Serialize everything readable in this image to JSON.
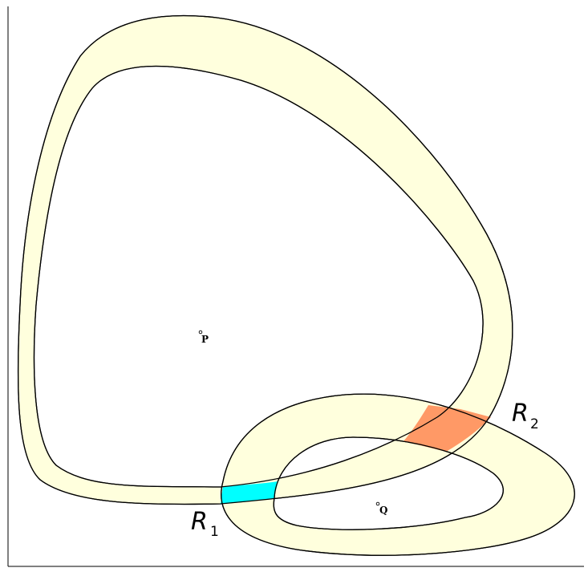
{
  "diagram": {
    "points": [
      {
        "id": "P",
        "label": "P"
      },
      {
        "id": "Q",
        "label": "Q"
      }
    ],
    "regions": [
      {
        "id": "R1",
        "label": "R",
        "subscript": "1",
        "color": "#00ffff"
      },
      {
        "id": "R2",
        "label": "R",
        "subscript": "2",
        "color": "#ff9966"
      }
    ],
    "colors": {
      "band_fill": "#ffffdd",
      "background": "#ffffff",
      "stroke": "#000000"
    }
  }
}
